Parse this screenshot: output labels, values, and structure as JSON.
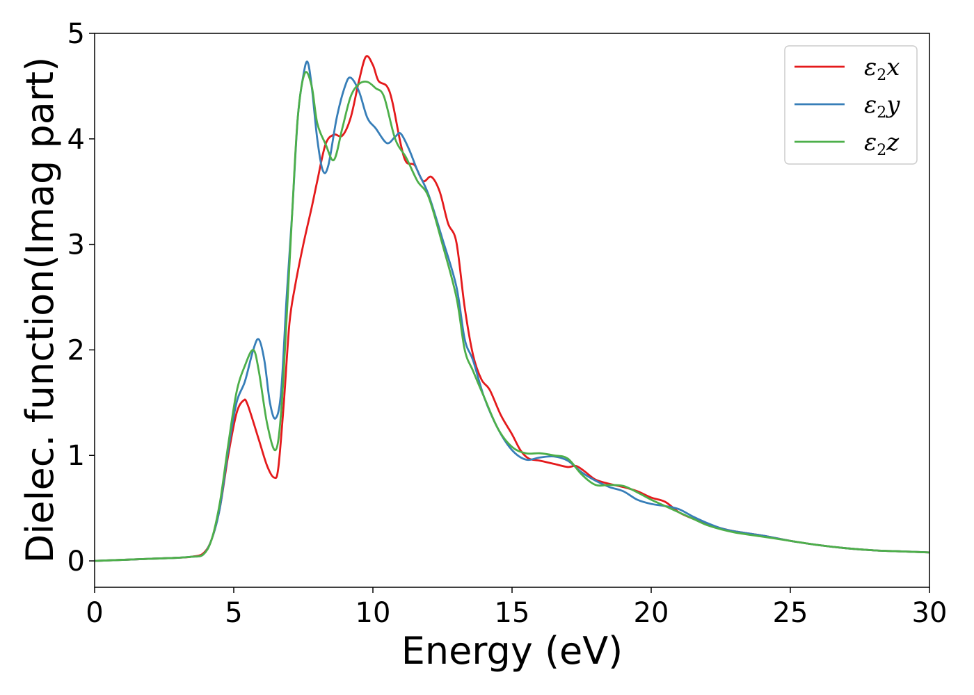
{
  "chart_data": {
    "type": "line",
    "title": "",
    "xlabel": "Energy (eV)",
    "ylabel": "Dielec. function(Imag part)",
    "xlim": [
      0,
      30
    ],
    "ylim": [
      -0.25,
      5.0
    ],
    "xticks": [
      0,
      5,
      10,
      15,
      20,
      25,
      30
    ],
    "yticks": [
      0,
      1,
      2,
      3,
      4,
      5
    ],
    "grid": false,
    "legend": "top-right",
    "legend_entries": [
      {
        "symbol": "ε",
        "sub": "2",
        "axis": "x"
      },
      {
        "symbol": "ε",
        "sub": "2",
        "axis": "y"
      },
      {
        "symbol": "ε",
        "sub": "2",
        "axis": "z"
      }
    ],
    "series": [
      {
        "name": "ε2x",
        "color": "#e41a1c",
        "points": [
          [
            0,
            0
          ],
          [
            2,
            0.02
          ],
          [
            3,
            0.03
          ],
          [
            3.5,
            0.04
          ],
          [
            3.9,
            0.07
          ],
          [
            4.2,
            0.2
          ],
          [
            4.5,
            0.5
          ],
          [
            4.8,
            1.0
          ],
          [
            5.1,
            1.4
          ],
          [
            5.35,
            1.52
          ],
          [
            5.5,
            1.48
          ],
          [
            5.9,
            1.15
          ],
          [
            6.2,
            0.9
          ],
          [
            6.45,
            0.79
          ],
          [
            6.6,
            0.88
          ],
          [
            6.8,
            1.5
          ],
          [
            7.0,
            2.25
          ],
          [
            7.2,
            2.6
          ],
          [
            7.5,
            3.0
          ],
          [
            7.8,
            3.35
          ],
          [
            8.0,
            3.6
          ],
          [
            8.3,
            3.95
          ],
          [
            8.6,
            4.04
          ],
          [
            8.9,
            4.03
          ],
          [
            9.2,
            4.2
          ],
          [
            9.5,
            4.55
          ],
          [
            9.75,
            4.78
          ],
          [
            10.0,
            4.7
          ],
          [
            10.2,
            4.55
          ],
          [
            10.5,
            4.5
          ],
          [
            10.7,
            4.35
          ],
          [
            11.0,
            3.95
          ],
          [
            11.2,
            3.78
          ],
          [
            11.5,
            3.75
          ],
          [
            11.8,
            3.6
          ],
          [
            12.1,
            3.64
          ],
          [
            12.4,
            3.5
          ],
          [
            12.7,
            3.2
          ],
          [
            13.0,
            3.02
          ],
          [
            13.3,
            2.4
          ],
          [
            13.6,
            1.95
          ],
          [
            13.9,
            1.72
          ],
          [
            14.2,
            1.62
          ],
          [
            14.6,
            1.38
          ],
          [
            15.0,
            1.2
          ],
          [
            15.3,
            1.05
          ],
          [
            15.6,
            0.97
          ],
          [
            16.0,
            0.95
          ],
          [
            16.5,
            0.92
          ],
          [
            17.0,
            0.89
          ],
          [
            17.3,
            0.9
          ],
          [
            17.6,
            0.85
          ],
          [
            18.0,
            0.77
          ],
          [
            18.5,
            0.73
          ],
          [
            19.0,
            0.7
          ],
          [
            19.5,
            0.66
          ],
          [
            20.0,
            0.6
          ],
          [
            20.5,
            0.56
          ],
          [
            21.0,
            0.46
          ],
          [
            21.5,
            0.4
          ],
          [
            22.0,
            0.35
          ],
          [
            22.5,
            0.31
          ],
          [
            23.0,
            0.28
          ],
          [
            24.0,
            0.24
          ],
          [
            25.0,
            0.19
          ],
          [
            26.0,
            0.15
          ],
          [
            27.0,
            0.12
          ],
          [
            28.0,
            0.1
          ],
          [
            29.0,
            0.09
          ],
          [
            30.0,
            0.08
          ]
        ]
      },
      {
        "name": "ε2y",
        "color": "#377eb8",
        "points": [
          [
            0,
            0
          ],
          [
            2,
            0.02
          ],
          [
            3,
            0.03
          ],
          [
            3.5,
            0.04
          ],
          [
            3.9,
            0.06
          ],
          [
            4.2,
            0.2
          ],
          [
            4.5,
            0.5
          ],
          [
            4.8,
            1.05
          ],
          [
            5.1,
            1.5
          ],
          [
            5.4,
            1.7
          ],
          [
            5.7,
            2.0
          ],
          [
            5.9,
            2.1
          ],
          [
            6.1,
            1.9
          ],
          [
            6.3,
            1.5
          ],
          [
            6.5,
            1.35
          ],
          [
            6.7,
            1.6
          ],
          [
            6.9,
            2.5
          ],
          [
            7.1,
            3.3
          ],
          [
            7.3,
            4.2
          ],
          [
            7.5,
            4.6
          ],
          [
            7.65,
            4.73
          ],
          [
            7.8,
            4.5
          ],
          [
            8.0,
            4.0
          ],
          [
            8.2,
            3.7
          ],
          [
            8.4,
            3.75
          ],
          [
            8.7,
            4.2
          ],
          [
            9.0,
            4.5
          ],
          [
            9.2,
            4.58
          ],
          [
            9.5,
            4.45
          ],
          [
            9.8,
            4.2
          ],
          [
            10.1,
            4.1
          ],
          [
            10.5,
            3.96
          ],
          [
            10.8,
            4.02
          ],
          [
            11.0,
            4.05
          ],
          [
            11.3,
            3.9
          ],
          [
            11.6,
            3.7
          ],
          [
            12.0,
            3.47
          ],
          [
            12.5,
            3.05
          ],
          [
            13.0,
            2.6
          ],
          [
            13.3,
            2.1
          ],
          [
            13.6,
            1.9
          ],
          [
            14.0,
            1.55
          ],
          [
            14.5,
            1.25
          ],
          [
            15.0,
            1.05
          ],
          [
            15.5,
            0.96
          ],
          [
            16.0,
            0.98
          ],
          [
            16.5,
            0.99
          ],
          [
            17.0,
            0.95
          ],
          [
            17.5,
            0.84
          ],
          [
            18.0,
            0.76
          ],
          [
            18.5,
            0.7
          ],
          [
            19.0,
            0.66
          ],
          [
            19.5,
            0.58
          ],
          [
            20.0,
            0.54
          ],
          [
            20.5,
            0.52
          ],
          [
            21.0,
            0.49
          ],
          [
            21.5,
            0.42
          ],
          [
            22.0,
            0.36
          ],
          [
            22.5,
            0.31
          ],
          [
            23.0,
            0.28
          ],
          [
            24.0,
            0.24
          ],
          [
            25.0,
            0.19
          ],
          [
            26.0,
            0.15
          ],
          [
            27.0,
            0.12
          ],
          [
            28.0,
            0.1
          ],
          [
            29.0,
            0.09
          ],
          [
            30.0,
            0.08
          ]
        ]
      },
      {
        "name": "ε2z",
        "color": "#4daf4a",
        "points": [
          [
            0,
            0
          ],
          [
            2,
            0.02
          ],
          [
            3,
            0.03
          ],
          [
            3.5,
            0.04
          ],
          [
            3.9,
            0.06
          ],
          [
            4.2,
            0.2
          ],
          [
            4.5,
            0.55
          ],
          [
            4.8,
            1.1
          ],
          [
            5.1,
            1.6
          ],
          [
            5.4,
            1.85
          ],
          [
            5.7,
            2.0
          ],
          [
            5.9,
            1.8
          ],
          [
            6.2,
            1.3
          ],
          [
            6.5,
            1.05
          ],
          [
            6.7,
            1.4
          ],
          [
            6.9,
            2.3
          ],
          [
            7.1,
            3.3
          ],
          [
            7.3,
            4.2
          ],
          [
            7.55,
            4.62
          ],
          [
            7.8,
            4.5
          ],
          [
            8.0,
            4.15
          ],
          [
            8.3,
            3.95
          ],
          [
            8.6,
            3.8
          ],
          [
            8.9,
            4.1
          ],
          [
            9.2,
            4.4
          ],
          [
            9.5,
            4.52
          ],
          [
            9.8,
            4.54
          ],
          [
            10.1,
            4.48
          ],
          [
            10.4,
            4.4
          ],
          [
            10.8,
            4.0
          ],
          [
            11.2,
            3.82
          ],
          [
            11.6,
            3.6
          ],
          [
            12.0,
            3.45
          ],
          [
            12.5,
            3.0
          ],
          [
            13.0,
            2.5
          ],
          [
            13.3,
            2.0
          ],
          [
            13.6,
            1.8
          ],
          [
            14.0,
            1.55
          ],
          [
            14.5,
            1.25
          ],
          [
            15.0,
            1.08
          ],
          [
            15.5,
            1.02
          ],
          [
            16.0,
            1.02
          ],
          [
            16.5,
            1.0
          ],
          [
            17.0,
            0.97
          ],
          [
            17.5,
            0.82
          ],
          [
            18.0,
            0.72
          ],
          [
            18.5,
            0.72
          ],
          [
            19.0,
            0.71
          ],
          [
            19.5,
            0.65
          ],
          [
            20.0,
            0.58
          ],
          [
            20.5,
            0.52
          ],
          [
            21.0,
            0.46
          ],
          [
            21.5,
            0.4
          ],
          [
            22.0,
            0.34
          ],
          [
            22.5,
            0.3
          ],
          [
            23.0,
            0.27
          ],
          [
            24.0,
            0.23
          ],
          [
            25.0,
            0.19
          ],
          [
            26.0,
            0.15
          ],
          [
            27.0,
            0.12
          ],
          [
            28.0,
            0.1
          ],
          [
            29.0,
            0.09
          ],
          [
            30.0,
            0.08
          ]
        ]
      }
    ]
  }
}
